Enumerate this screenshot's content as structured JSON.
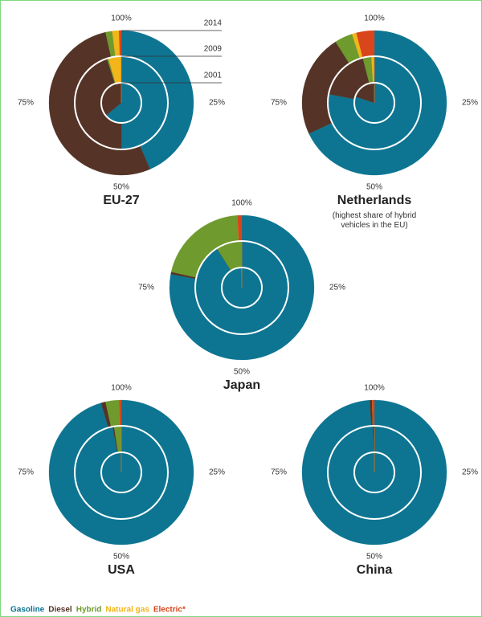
{
  "chart_data": {
    "type": "donut",
    "categories": [
      "2001",
      "2009",
      "2014"
    ],
    "ticks": [
      {
        "value": 100,
        "label": "100%"
      },
      {
        "value": 25,
        "label": "25%"
      },
      {
        "value": 50,
        "label": "50%"
      },
      {
        "value": 75,
        "label": "75%"
      }
    ],
    "series": [
      {
        "name": "Gasoline",
        "color": "#0d7592"
      },
      {
        "name": "Diesel",
        "color": "#553427"
      },
      {
        "name": "Hybrid",
        "color": "#6f9a2d"
      },
      {
        "name": "Natural gas",
        "color": "#f2b51a"
      },
      {
        "name": "Electric*",
        "color": "#d9461c"
      }
    ],
    "charts": [
      {
        "title": "EU-27",
        "values": [
          [
            64,
            50,
            43.5
          ],
          [
            36,
            45,
            53
          ],
          [
            0,
            0.5,
            1.5
          ],
          [
            0,
            4.5,
            1.5
          ],
          [
            0,
            0,
            0.5
          ]
        ]
      },
      {
        "title": "Netherlands",
        "subtitle": "(highest share of hybrid vehicles in the EU)",
        "values": [
          [
            80,
            78,
            68
          ],
          [
            20,
            18,
            23
          ],
          [
            0,
            3,
            4
          ],
          [
            0,
            1,
            1
          ],
          [
            0,
            0,
            4
          ]
        ]
      },
      {
        "title": "Japan",
        "values": [
          [
            99.5,
            91,
            78
          ],
          [
            0,
            0,
            0.5
          ],
          [
            0.5,
            9,
            20.5
          ],
          [
            0,
            0,
            0
          ],
          [
            0,
            0,
            1
          ]
        ]
      },
      {
        "title": "USA",
        "values": [
          [
            100,
            97,
            95.5
          ],
          [
            0,
            0.5,
            1
          ],
          [
            0,
            2.5,
            3
          ],
          [
            0,
            0,
            0
          ],
          [
            0,
            0,
            0.5
          ]
        ]
      },
      {
        "title": "China",
        "values": [
          [
            100,
            99.5,
            99
          ],
          [
            0,
            0.5,
            0.5
          ],
          [
            0,
            0,
            0
          ],
          [
            0,
            0,
            0
          ],
          [
            0,
            0,
            0.5
          ]
        ]
      }
    ]
  }
}
